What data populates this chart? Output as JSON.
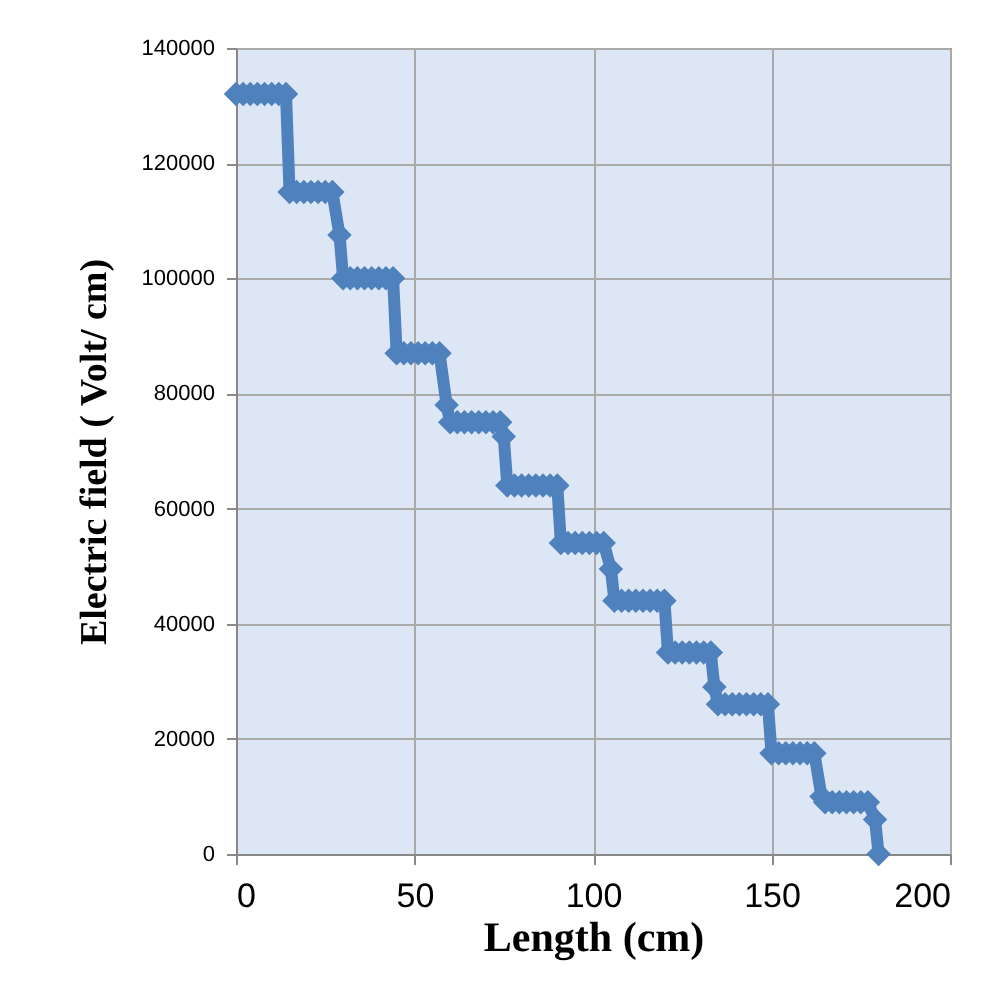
{
  "chart_data": {
    "type": "line",
    "xlabel": "Length (cm)",
    "ylabel": "Electric field ( Volt/ cm)",
    "xlim": [
      0,
      200
    ],
    "xticks": [
      0,
      50,
      100,
      150,
      200
    ],
    "ylim": [
      0,
      140000
    ],
    "yticks": [
      0,
      20000,
      40000,
      60000,
      80000,
      100000,
      120000,
      140000
    ],
    "grid": true,
    "marker": "diamond",
    "line_style": "solid",
    "series": [
      {
        "color": "#4f81bd",
        "x": [
          0,
          2,
          4,
          6,
          8,
          10,
          12,
          14,
          15,
          17,
          19,
          21,
          23,
          25,
          27,
          29,
          30,
          32,
          34,
          36,
          38,
          40,
          42,
          44,
          45,
          47,
          49,
          51,
          53,
          55,
          57,
          59,
          60,
          62,
          64,
          66,
          68,
          70,
          72,
          74,
          75,
          76,
          78,
          80,
          82,
          84,
          86,
          88,
          90,
          91,
          93,
          95,
          97,
          99,
          101,
          103,
          105,
          106,
          108,
          110,
          112,
          114,
          116,
          118,
          120,
          121,
          123,
          125,
          127,
          129,
          131,
          133,
          134,
          135,
          137,
          139,
          141,
          143,
          145,
          147,
          149,
          150,
          152,
          154,
          156,
          158,
          160,
          162,
          164,
          165,
          167,
          169,
          171,
          173,
          175,
          177,
          179,
          180
        ],
        "values": [
          132000,
          132000,
          132000,
          132000,
          132000,
          132000,
          132000,
          132000,
          115000,
          115000,
          115000,
          115000,
          115000,
          115000,
          115000,
          107500,
          100000,
          100000,
          100000,
          100000,
          100000,
          100000,
          100000,
          100000,
          87000,
          87000,
          87000,
          87000,
          87000,
          87000,
          87000,
          78000,
          75000,
          75000,
          75000,
          75000,
          75000,
          75000,
          75000,
          75000,
          72500,
          64000,
          64000,
          64000,
          64000,
          64000,
          64000,
          64000,
          64000,
          54000,
          54000,
          54000,
          54000,
          54000,
          54000,
          54000,
          49500,
          44000,
          44000,
          44000,
          44000,
          44000,
          44000,
          44000,
          44000,
          35000,
          35000,
          35000,
          35000,
          35000,
          35000,
          35000,
          29000,
          26000,
          26000,
          26000,
          26000,
          26000,
          26000,
          26000,
          26000,
          17500,
          17500,
          17500,
          17500,
          17500,
          17500,
          17500,
          10000,
          9000,
          9000,
          9000,
          9000,
          9000,
          9000,
          9000,
          6000,
          0
        ]
      }
    ]
  }
}
